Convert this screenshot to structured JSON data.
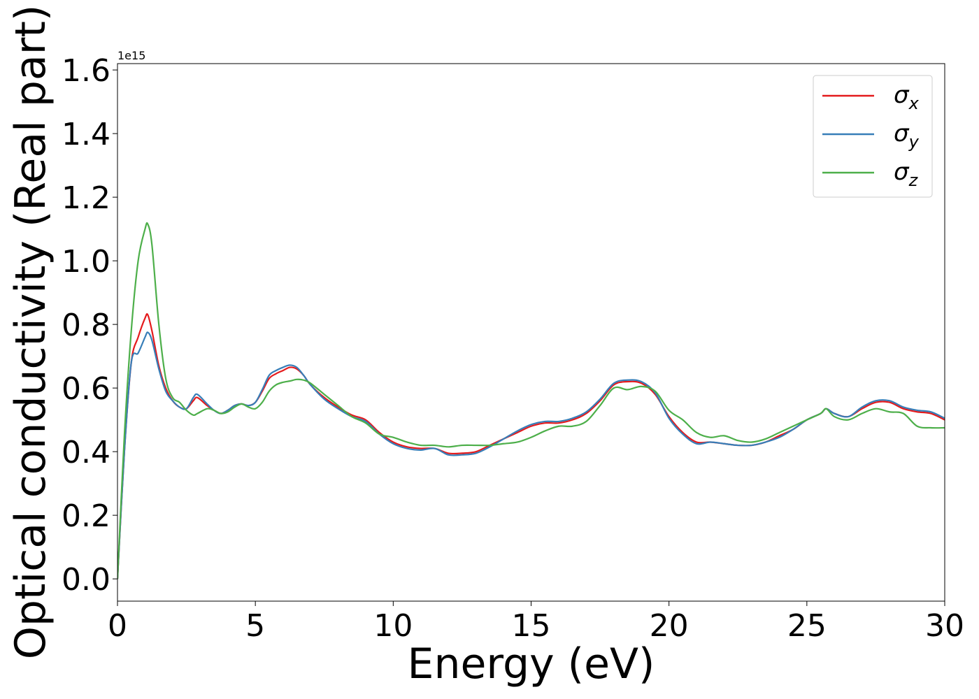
{
  "chart_data": {
    "type": "line",
    "title": "",
    "xlabel": "Energy (eV)",
    "ylabel": "Optical conductivity (Real part)",
    "offset_text": "1e15",
    "xlim": [
      0,
      30
    ],
    "ylim": [
      -0.07,
      1.62
    ],
    "x_ticks": [
      0,
      5,
      10,
      15,
      20,
      25,
      30
    ],
    "x_tick_labels": [
      "0",
      "5",
      "10",
      "15",
      "20",
      "25",
      "30"
    ],
    "y_ticks": [
      0.0,
      0.2,
      0.4,
      0.6,
      0.8,
      1.0,
      1.2,
      1.4,
      1.6
    ],
    "y_tick_labels": [
      "0.0",
      "0.2",
      "0.4",
      "0.6",
      "0.8",
      "1.0",
      "1.2",
      "1.4",
      "1.6"
    ],
    "grid": false,
    "legend_position": "top-right",
    "series": [
      {
        "name": "σx",
        "legend_base": "σ",
        "legend_sub": "x",
        "color": "#e41a1c",
        "x": [
          0,
          0.25,
          0.5,
          0.75,
          1.0,
          1.1,
          1.25,
          1.5,
          1.75,
          2.0,
          2.25,
          2.5,
          2.75,
          2.9,
          3.25,
          3.5,
          3.75,
          4.0,
          4.25,
          4.5,
          4.75,
          5.0,
          5.25,
          5.5,
          5.75,
          6.0,
          6.25,
          6.5,
          6.75,
          7.0,
          7.5,
          8.0,
          8.5,
          9.0,
          9.5,
          10.0,
          10.5,
          11.0,
          11.5,
          12.0,
          12.5,
          13.0,
          13.5,
          14.0,
          14.5,
          15.0,
          15.5,
          16.0,
          16.5,
          17.0,
          17.5,
          18.0,
          18.5,
          19.0,
          19.5,
          20.0,
          20.5,
          21.0,
          21.5,
          22.0,
          22.5,
          23.0,
          23.5,
          24.0,
          24.5,
          25.0,
          25.5,
          25.7,
          26.0,
          26.5,
          27.0,
          27.5,
          28.0,
          28.5,
          29.0,
          29.5,
          30.0
        ],
        "y": [
          0.0,
          0.4,
          0.68,
          0.76,
          0.82,
          0.83,
          0.78,
          0.67,
          0.6,
          0.56,
          0.54,
          0.535,
          0.56,
          0.57,
          0.545,
          0.53,
          0.52,
          0.53,
          0.545,
          0.55,
          0.545,
          0.555,
          0.59,
          0.63,
          0.645,
          0.655,
          0.665,
          0.66,
          0.64,
          0.61,
          0.57,
          0.54,
          0.515,
          0.5,
          0.46,
          0.43,
          0.415,
          0.41,
          0.41,
          0.395,
          0.395,
          0.4,
          0.42,
          0.44,
          0.46,
          0.48,
          0.49,
          0.49,
          0.5,
          0.52,
          0.56,
          0.61,
          0.62,
          0.615,
          0.58,
          0.51,
          0.46,
          0.43,
          0.43,
          0.425,
          0.42,
          0.42,
          0.43,
          0.45,
          0.47,
          0.5,
          0.52,
          0.535,
          0.52,
          0.51,
          0.535,
          0.555,
          0.555,
          0.535,
          0.525,
          0.52,
          0.5
        ]
      },
      {
        "name": "σy",
        "legend_base": "σ",
        "legend_sub": "y",
        "color": "#377eb8",
        "x": [
          0,
          0.25,
          0.5,
          0.75,
          1.0,
          1.1,
          1.25,
          1.5,
          1.75,
          2.0,
          2.25,
          2.5,
          2.75,
          2.9,
          3.25,
          3.5,
          3.75,
          4.0,
          4.25,
          4.5,
          4.75,
          5.0,
          5.25,
          5.5,
          5.75,
          6.0,
          6.25,
          6.5,
          6.75,
          7.0,
          7.5,
          8.0,
          8.5,
          9.0,
          9.5,
          10.0,
          10.5,
          11.0,
          11.5,
          12.0,
          12.5,
          13.0,
          13.5,
          14.0,
          14.5,
          15.0,
          15.5,
          16.0,
          16.5,
          17.0,
          17.5,
          18.0,
          18.5,
          19.0,
          19.5,
          20.0,
          20.5,
          21.0,
          21.5,
          22.0,
          22.5,
          23.0,
          23.5,
          24.0,
          24.5,
          25.0,
          25.5,
          25.7,
          26.0,
          26.5,
          27.0,
          27.5,
          28.0,
          28.5,
          29.0,
          29.5,
          30.0
        ],
        "y": [
          0.0,
          0.4,
          0.68,
          0.71,
          0.76,
          0.775,
          0.75,
          0.66,
          0.59,
          0.56,
          0.54,
          0.535,
          0.57,
          0.58,
          0.55,
          0.53,
          0.52,
          0.53,
          0.545,
          0.55,
          0.545,
          0.555,
          0.595,
          0.64,
          0.655,
          0.665,
          0.672,
          0.665,
          0.64,
          0.61,
          0.565,
          0.535,
          0.51,
          0.495,
          0.455,
          0.425,
          0.41,
          0.405,
          0.41,
          0.39,
          0.39,
          0.395,
          0.415,
          0.44,
          0.465,
          0.485,
          0.495,
          0.495,
          0.505,
          0.525,
          0.565,
          0.615,
          0.625,
          0.62,
          0.585,
          0.505,
          0.455,
          0.425,
          0.43,
          0.425,
          0.42,
          0.42,
          0.43,
          0.445,
          0.47,
          0.5,
          0.52,
          0.535,
          0.52,
          0.51,
          0.54,
          0.56,
          0.56,
          0.54,
          0.53,
          0.525,
          0.505
        ]
      },
      {
        "name": "σz",
        "legend_base": "σ",
        "legend_sub": "z",
        "color": "#4daf4a",
        "x": [
          0,
          0.25,
          0.5,
          0.75,
          1.0,
          1.1,
          1.25,
          1.5,
          1.75,
          2.0,
          2.25,
          2.5,
          2.75,
          2.9,
          3.25,
          3.5,
          3.75,
          4.0,
          4.25,
          4.5,
          4.75,
          5.0,
          5.25,
          5.5,
          5.75,
          6.0,
          6.25,
          6.5,
          6.75,
          7.0,
          7.5,
          8.0,
          8.5,
          9.0,
          9.5,
          10.0,
          10.5,
          11.0,
          11.5,
          12.0,
          12.5,
          13.0,
          13.5,
          14.0,
          14.5,
          15.0,
          15.5,
          16.0,
          16.5,
          17.0,
          17.5,
          18.0,
          18.5,
          19.0,
          19.5,
          20.0,
          20.5,
          21.0,
          21.5,
          22.0,
          22.5,
          23.0,
          23.5,
          24.0,
          24.5,
          25.0,
          25.5,
          25.7,
          26.0,
          26.5,
          27.0,
          27.5,
          28.0,
          28.5,
          29.0,
          29.5,
          30.0
        ],
        "y": [
          0.0,
          0.45,
          0.78,
          1.0,
          1.1,
          1.115,
          1.05,
          0.8,
          0.63,
          0.57,
          0.555,
          0.53,
          0.515,
          0.52,
          0.535,
          0.53,
          0.52,
          0.525,
          0.54,
          0.55,
          0.54,
          0.535,
          0.555,
          0.59,
          0.61,
          0.618,
          0.622,
          0.627,
          0.625,
          0.615,
          0.58,
          0.545,
          0.51,
          0.49,
          0.455,
          0.445,
          0.43,
          0.42,
          0.42,
          0.415,
          0.42,
          0.42,
          0.42,
          0.425,
          0.43,
          0.445,
          0.465,
          0.48,
          0.48,
          0.495,
          0.545,
          0.6,
          0.595,
          0.605,
          0.59,
          0.53,
          0.5,
          0.46,
          0.445,
          0.45,
          0.435,
          0.43,
          0.44,
          0.46,
          0.48,
          0.5,
          0.52,
          0.535,
          0.51,
          0.5,
          0.52,
          0.535,
          0.525,
          0.52,
          0.48,
          0.475,
          0.475
        ]
      }
    ]
  }
}
